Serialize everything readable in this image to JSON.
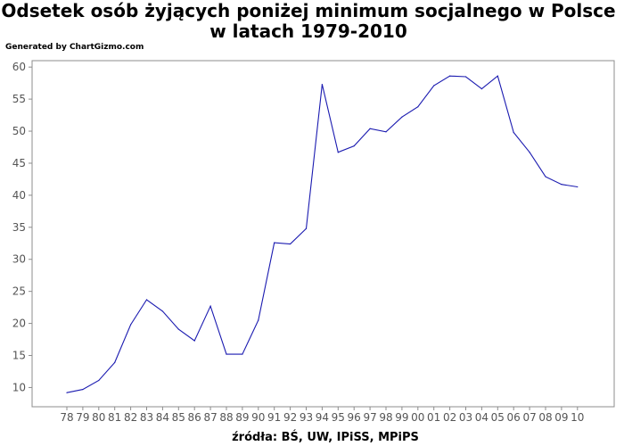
{
  "chart_data": {
    "type": "line",
    "title": "Odsetek osób żyjących poniżej minimum socjalnego w Polsce w latach 1979-2010",
    "credit": "Generated by ChartGizmo.com",
    "xlabel": "źródła: BŚ, UW, IPiSS, MPiPS",
    "ylabel": "",
    "ylim": [
      7,
      61
    ],
    "yticks": [
      10,
      15,
      20,
      25,
      30,
      35,
      40,
      45,
      50,
      55,
      60
    ],
    "grid": false,
    "legend": "none",
    "line_color": "#1a1ab0",
    "categories": [
      "78",
      "79",
      "80",
      "81",
      "82",
      "83",
      "84",
      "85",
      "86",
      "87",
      "88",
      "89",
      "90",
      "91",
      "92",
      "93",
      "94",
      "95",
      "96",
      "97",
      "98",
      "99",
      "00",
      "01",
      "02",
      "03",
      "04",
      "05",
      "06",
      "07",
      "08",
      "09",
      "10"
    ],
    "values": [
      9.2,
      9.7,
      11.1,
      13.9,
      19.8,
      23.7,
      21.9,
      19.1,
      17.3,
      22.7,
      15.2,
      15.2,
      20.5,
      32.6,
      32.4,
      34.8,
      57.3,
      46.7,
      47.7,
      50.4,
      49.9,
      52.2,
      53.8,
      57.1,
      58.6,
      58.5,
      56.6,
      58.6,
      49.8,
      46.7,
      42.9,
      41.7,
      41.3
    ]
  }
}
